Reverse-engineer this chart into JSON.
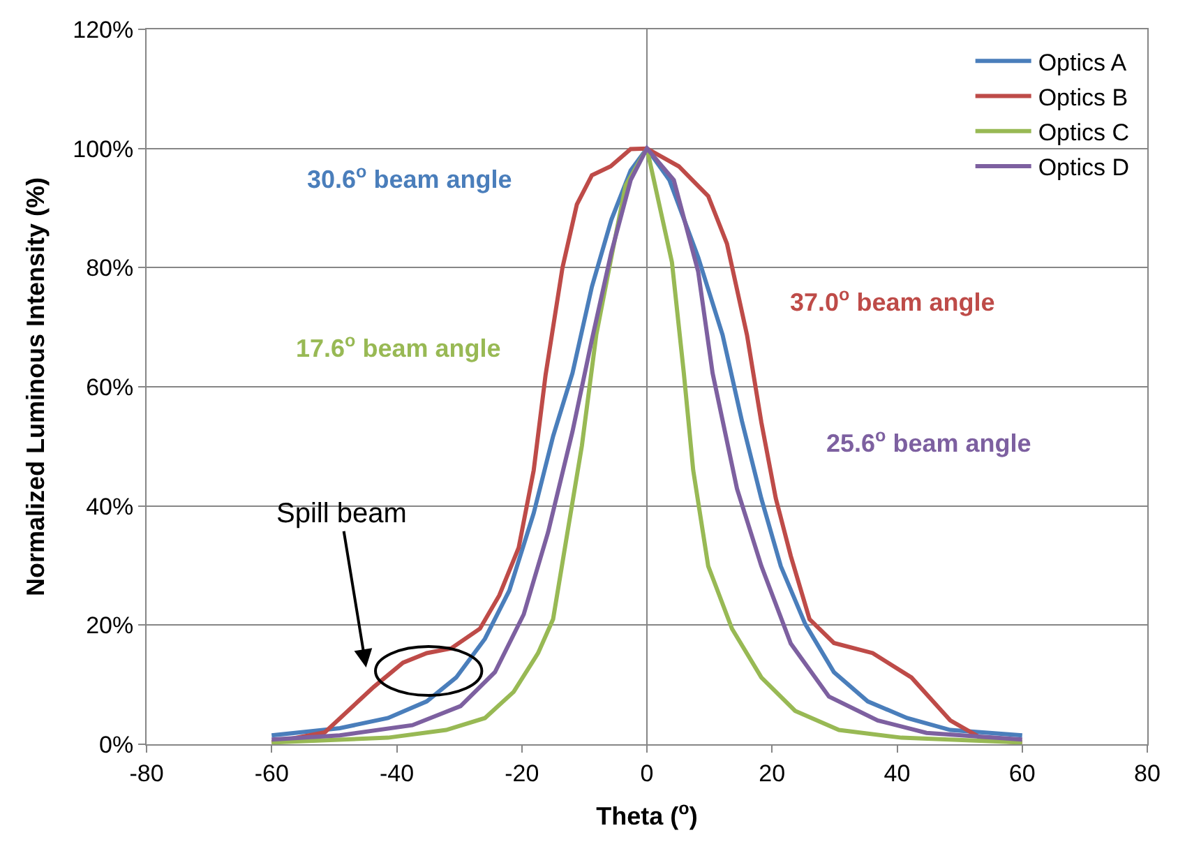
{
  "chart_data": {
    "type": "line",
    "xlabel": "Theta ($^{o}$)",
    "ylabel": "Normalized Luminous Intensity (%)",
    "xlim": [
      -80,
      80
    ],
    "xticks": [
      -80,
      -60,
      -40,
      -20,
      0,
      20,
      40,
      60,
      80
    ],
    "ylim": [
      0,
      120
    ],
    "yticks": [
      {
        "value": 0,
        "label": "0%"
      },
      {
        "value": 20,
        "label": "20%"
      },
      {
        "value": 40,
        "label": "40%"
      },
      {
        "value": 60,
        "label": "60%"
      },
      {
        "value": 80,
        "label": "80%"
      },
      {
        "value": 100,
        "label": "100%"
      },
      {
        "value": 120,
        "label": "120%"
      }
    ],
    "grid": "y",
    "legend": "top right",
    "marker": "none",
    "line_style": "solid",
    "series": [
      {
        "name": "Optics A",
        "color": "#4a7ebb",
        "x": [
          -60,
          -49.1,
          -41.4,
          -35.2,
          -30.5,
          -25.9,
          -22,
          -18.1,
          -15,
          -11.9,
          -8.8,
          -5.7,
          -2.6,
          0,
          3.6,
          8.2,
          12.1,
          15.2,
          18.3,
          21.4,
          25.3,
          29.9,
          35.3,
          41.6,
          48.5,
          60
        ],
        "values": [
          1.5,
          2.7,
          4.4,
          7.2,
          11.2,
          17.7,
          25.8,
          38.8,
          51.7,
          62.3,
          76.8,
          88,
          96.3,
          100,
          94.7,
          81.7,
          68.7,
          54.2,
          41.2,
          29.9,
          20.2,
          12.1,
          7.2,
          4.4,
          2.4,
          1.5
        ]
      },
      {
        "name": "Optics B",
        "color": "#be4b48",
        "x": [
          -60,
          -51.5,
          -43.7,
          -39,
          -35.2,
          -31.3,
          -26.7,
          -23.6,
          -20.5,
          -18.1,
          -16.2,
          -13.5,
          -11.2,
          -8.8,
          -5.8,
          -2.6,
          0,
          5.1,
          9.8,
          12.8,
          16,
          18.3,
          20.6,
          23,
          26,
          29.9,
          36.1,
          42.3,
          48.5,
          54,
          60
        ],
        "values": [
          0.3,
          2,
          9.6,
          13.7,
          15.3,
          16.1,
          19.4,
          25,
          33,
          46,
          62,
          80,
          90.6,
          95.5,
          97,
          99.9,
          100,
          97,
          92,
          84,
          68.7,
          54,
          41.3,
          31.6,
          21,
          17,
          15.3,
          11.2,
          4,
          0.7,
          0.3
        ]
      },
      {
        "name": "Optics C",
        "color": "#98b954",
        "x": [
          -60,
          -41.4,
          -32.1,
          -25.9,
          -21.3,
          -17.4,
          -15,
          -12.7,
          -10.4,
          -8.1,
          -5.7,
          -3.4,
          0,
          4,
          5.9,
          7.4,
          9.8,
          13.6,
          18.3,
          23.7,
          30.7,
          40.7,
          60
        ],
        "values": [
          0.3,
          1.1,
          2.4,
          4.4,
          8.8,
          15.3,
          21,
          35.6,
          50.1,
          68.7,
          81.7,
          93.8,
          100,
          80.9,
          62.3,
          46,
          29.9,
          19.4,
          11.2,
          5.6,
          2.4,
          1.1,
          0.3
        ]
      },
      {
        "name": "Optics D",
        "color": "#7d60a0",
        "x": [
          -60,
          -49.1,
          -37.5,
          -29.8,
          -24.3,
          -19.7,
          -15.8,
          -11.9,
          -8.8,
          -5.7,
          -2.6,
          0,
          4.3,
          8.2,
          10.5,
          14.4,
          18.3,
          23,
          29.1,
          36.9,
          44.7,
          60
        ],
        "values": [
          0.8,
          1.5,
          3.2,
          6.4,
          12.1,
          21.8,
          35.6,
          52.5,
          67.9,
          82.5,
          94.7,
          100,
          94.7,
          79.3,
          62.3,
          42.9,
          29.9,
          16.9,
          8,
          4,
          1.9,
          0.8
        ]
      }
    ],
    "ref_lines": [
      {
        "axis": "x",
        "value": 0,
        "color": "#868686"
      }
    ],
    "annotations": [
      "30.6$^{o}$ beam angle",
      "37.0$^{o}$ beam angle",
      "17.6$^{o}$ beam angle",
      "25.6$^{o}$ beam angle",
      "Spill beam"
    ]
  }
}
